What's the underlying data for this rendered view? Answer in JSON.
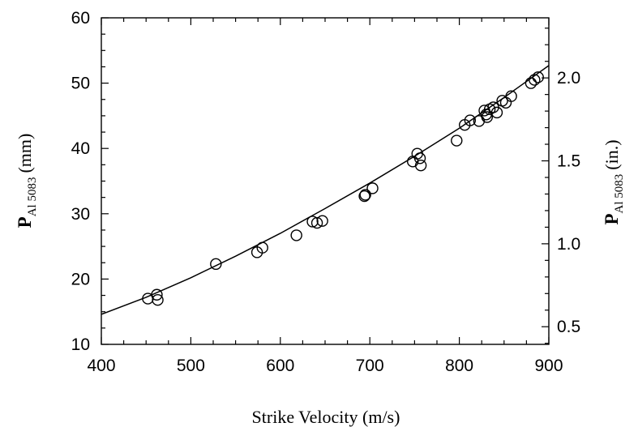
{
  "chart_data": {
    "type": "scatter",
    "xlabel": "Strike Velocity (m/s)",
    "ylabel": {
      "main": "P",
      "sub": "Al 5083",
      "unit": "(mm)"
    },
    "y2label": {
      "main": "P",
      "sub": "Al 5083",
      "unit": "(in.)"
    },
    "xlim": [
      400,
      900
    ],
    "ylim": [
      10,
      60
    ],
    "x_ticks": [
      "400",
      "500",
      "600",
      "700",
      "800",
      "900"
    ],
    "y_ticks": [
      "10",
      "20",
      "30",
      "40",
      "50",
      "60"
    ],
    "y2_ticks": [
      "0.5",
      "1.0",
      "1.5",
      "2.0"
    ],
    "y2_tick_values_in": [
      0.5,
      1.0,
      1.5,
      2.0
    ],
    "mm_per_inch": 25.4,
    "grid": false,
    "series": [
      {
        "type": "scatter",
        "marker": "open-circle",
        "x": [
          452,
          462,
          463,
          528,
          574,
          580,
          618,
          636,
          641,
          647,
          694,
          695,
          703,
          748,
          753,
          756,
          757,
          797,
          806,
          812,
          822,
          828,
          830,
          831,
          834,
          838,
          842,
          848,
          852,
          858,
          880,
          884,
          888
        ],
        "y": [
          17.0,
          17.6,
          16.8,
          22.3,
          24.1,
          24.8,
          26.7,
          28.8,
          28.6,
          28.9,
          32.7,
          32.9,
          33.9,
          38.0,
          39.2,
          38.5,
          37.4,
          41.2,
          43.6,
          44.3,
          44.2,
          45.8,
          45.2,
          44.8,
          46.0,
          46.3,
          45.5,
          47.3,
          47.0,
          48.0,
          50.0,
          50.5,
          50.9
        ]
      },
      {
        "type": "line",
        "x": [
          400,
          450,
          500,
          550,
          600,
          650,
          700,
          750,
          800,
          850,
          900
        ],
        "y": [
          14.6,
          17.2,
          20.2,
          23.5,
          27.0,
          30.8,
          34.7,
          38.8,
          43.1,
          47.8,
          52.7
        ]
      }
    ]
  }
}
